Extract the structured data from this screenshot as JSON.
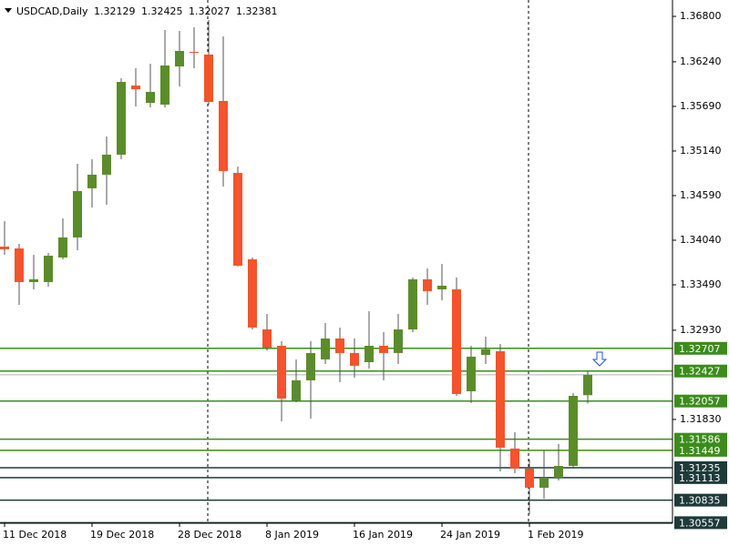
{
  "chart_data": {
    "type": "candlestick",
    "title": "USDCAD,Daily",
    "categories": [
      "11 Dec 2018",
      null,
      null,
      null,
      null,
      null,
      "19 Dec 2018",
      null,
      null,
      null,
      null,
      null,
      "28 Dec 2018",
      null,
      null,
      null,
      null,
      null,
      "8 Jan 2019",
      null,
      null,
      null,
      null,
      null,
      "16 Jan 2019",
      null,
      null,
      null,
      null,
      null,
      "24 Jan 2019",
      null,
      null,
      null,
      null,
      null,
      "1 Feb 2019",
      null,
      null,
      null,
      null
    ],
    "open": [
      1.33961,
      1.33939,
      1.33524,
      1.33524,
      1.33827,
      1.34074,
      1.3468,
      1.34848,
      1.35095,
      1.35947,
      1.35734,
      1.35712,
      1.36183,
      1.36362,
      1.36329,
      1.35757,
      1.3487,
      1.33804,
      1.3294,
      1.32738,
      1.32065,
      1.32312,
      1.3257,
      1.32828,
      1.32649,
      1.32536,
      1.32738,
      1.32649,
      1.3294,
      1.33558,
      1.33434,
      1.33434,
      1.32177,
      1.32626,
      1.32671,
      1.31471,
      1.31224,
      1.30988,
      1.31112,
      1.31257,
      1.32129
    ],
    "high": [
      1.34276,
      1.33995,
      1.3386,
      1.33883,
      1.34309,
      1.34982,
      1.35039,
      1.35319,
      1.36037,
      1.3616,
      1.36217,
      1.36632,
      1.36621,
      1.36665,
      1.36755,
      1.36553,
      1.34949,
      1.33827,
      1.33131,
      1.32795,
      1.3257,
      1.32795,
      1.33019,
      1.32963,
      1.32828,
      1.33165,
      1.32907,
      1.33131,
      1.3358,
      1.33692,
      1.33748,
      1.3358,
      1.32738,
      1.32851,
      1.32761,
      1.31673,
      1.31336,
      1.31448,
      1.31527,
      1.32155,
      1.32425
    ],
    "low": [
      1.3386,
      1.33243,
      1.33434,
      1.33468,
      1.33804,
      1.33916,
      1.34444,
      1.34478,
      1.35039,
      1.35689,
      1.35678,
      1.35678,
      1.35936,
      1.3616,
      1.35712,
      1.34702,
      1.33715,
      1.3294,
      1.32682,
      1.31807,
      1.32043,
      1.31841,
      1.32514,
      1.3229,
      1.32346,
      1.32458,
      1.32312,
      1.32514,
      1.32907,
      1.33243,
      1.33299,
      1.32121,
      1.32032,
      1.32514,
      1.3119,
      1.31168,
      1.30663,
      1.30853,
      1.31078,
      1.31224,
      1.32027
    ],
    "close": [
      1.33928,
      1.33524,
      1.33558,
      1.33849,
      1.34074,
      1.34646,
      1.34848,
      1.35095,
      1.35992,
      1.35902,
      1.35869,
      1.36194,
      1.36374,
      1.36351,
      1.35745,
      1.34893,
      1.33726,
      1.32963,
      1.32716,
      1.32088,
      1.32312,
      1.32649,
      1.32828,
      1.32649,
      1.32492,
      1.32738,
      1.32649,
      1.3294,
      1.33558,
      1.33412,
      1.33479,
      1.32144,
      1.32604,
      1.32694,
      1.31482,
      1.31224,
      1.30988,
      1.31112,
      1.31257,
      1.32121,
      1.32381
    ],
    "up_color": "#5b8c2b",
    "down_color": "#f4532b",
    "ylim": [
      1.3055,
      1.37002
    ],
    "yticks": [
      {
        "value": 1.368,
        "label": "1.36800"
      },
      {
        "value": 1.3624,
        "label": "1.36240"
      },
      {
        "value": 1.3569,
        "label": "1.35690"
      },
      {
        "value": 1.3514,
        "label": "1.35140"
      },
      {
        "value": 1.3459,
        "label": "1.34590"
      },
      {
        "value": 1.3404,
        "label": "1.34040"
      },
      {
        "value": 1.3349,
        "label": "1.33490"
      },
      {
        "value": 1.3293,
        "label": "1.32930"
      },
      {
        "value": 1.3183,
        "label": "1.31830"
      }
    ],
    "levels": [
      {
        "value": 1.32707,
        "color": "#3c8c1c"
      },
      {
        "value": 1.32427,
        "color": "#3c8c1c"
      },
      {
        "value": 1.32057,
        "color": "#3c8c1c"
      },
      {
        "value": 1.31586,
        "color": "#3c8c1c"
      },
      {
        "value": 1.31449,
        "color": "#3c8c1c"
      },
      {
        "value": 1.31235,
        "color": "#1e3a3a"
      },
      {
        "value": 1.31113,
        "color": "#1e3a3a"
      },
      {
        "value": 1.30835,
        "color": "#1e3a3a"
      },
      {
        "value": 1.30557,
        "color": "#1e3a3a"
      }
    ]
  }
}
